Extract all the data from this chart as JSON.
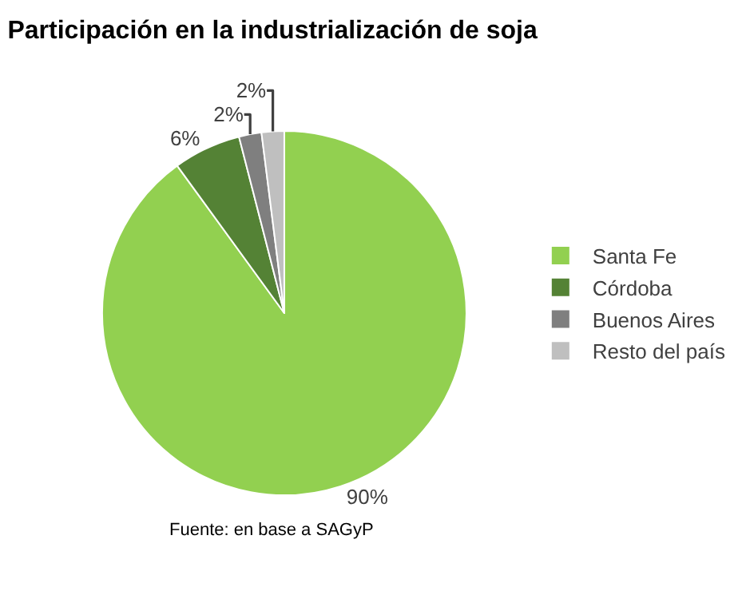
{
  "chart_data": {
    "type": "pie",
    "title": "Participación en la industrialización de soja",
    "categories": [
      "Santa Fe",
      "Córdoba",
      "Buenos Aires",
      "Resto del país"
    ],
    "values": [
      90,
      6,
      2,
      2
    ],
    "colors": [
      "#92d050",
      "#548235",
      "#7f7f7f",
      "#bfbfbf"
    ],
    "value_labels": [
      "90%",
      "6%",
      "2%",
      "2%"
    ],
    "legend": "right",
    "annotations": [
      "Fuente: en base a SAGyP"
    ]
  }
}
